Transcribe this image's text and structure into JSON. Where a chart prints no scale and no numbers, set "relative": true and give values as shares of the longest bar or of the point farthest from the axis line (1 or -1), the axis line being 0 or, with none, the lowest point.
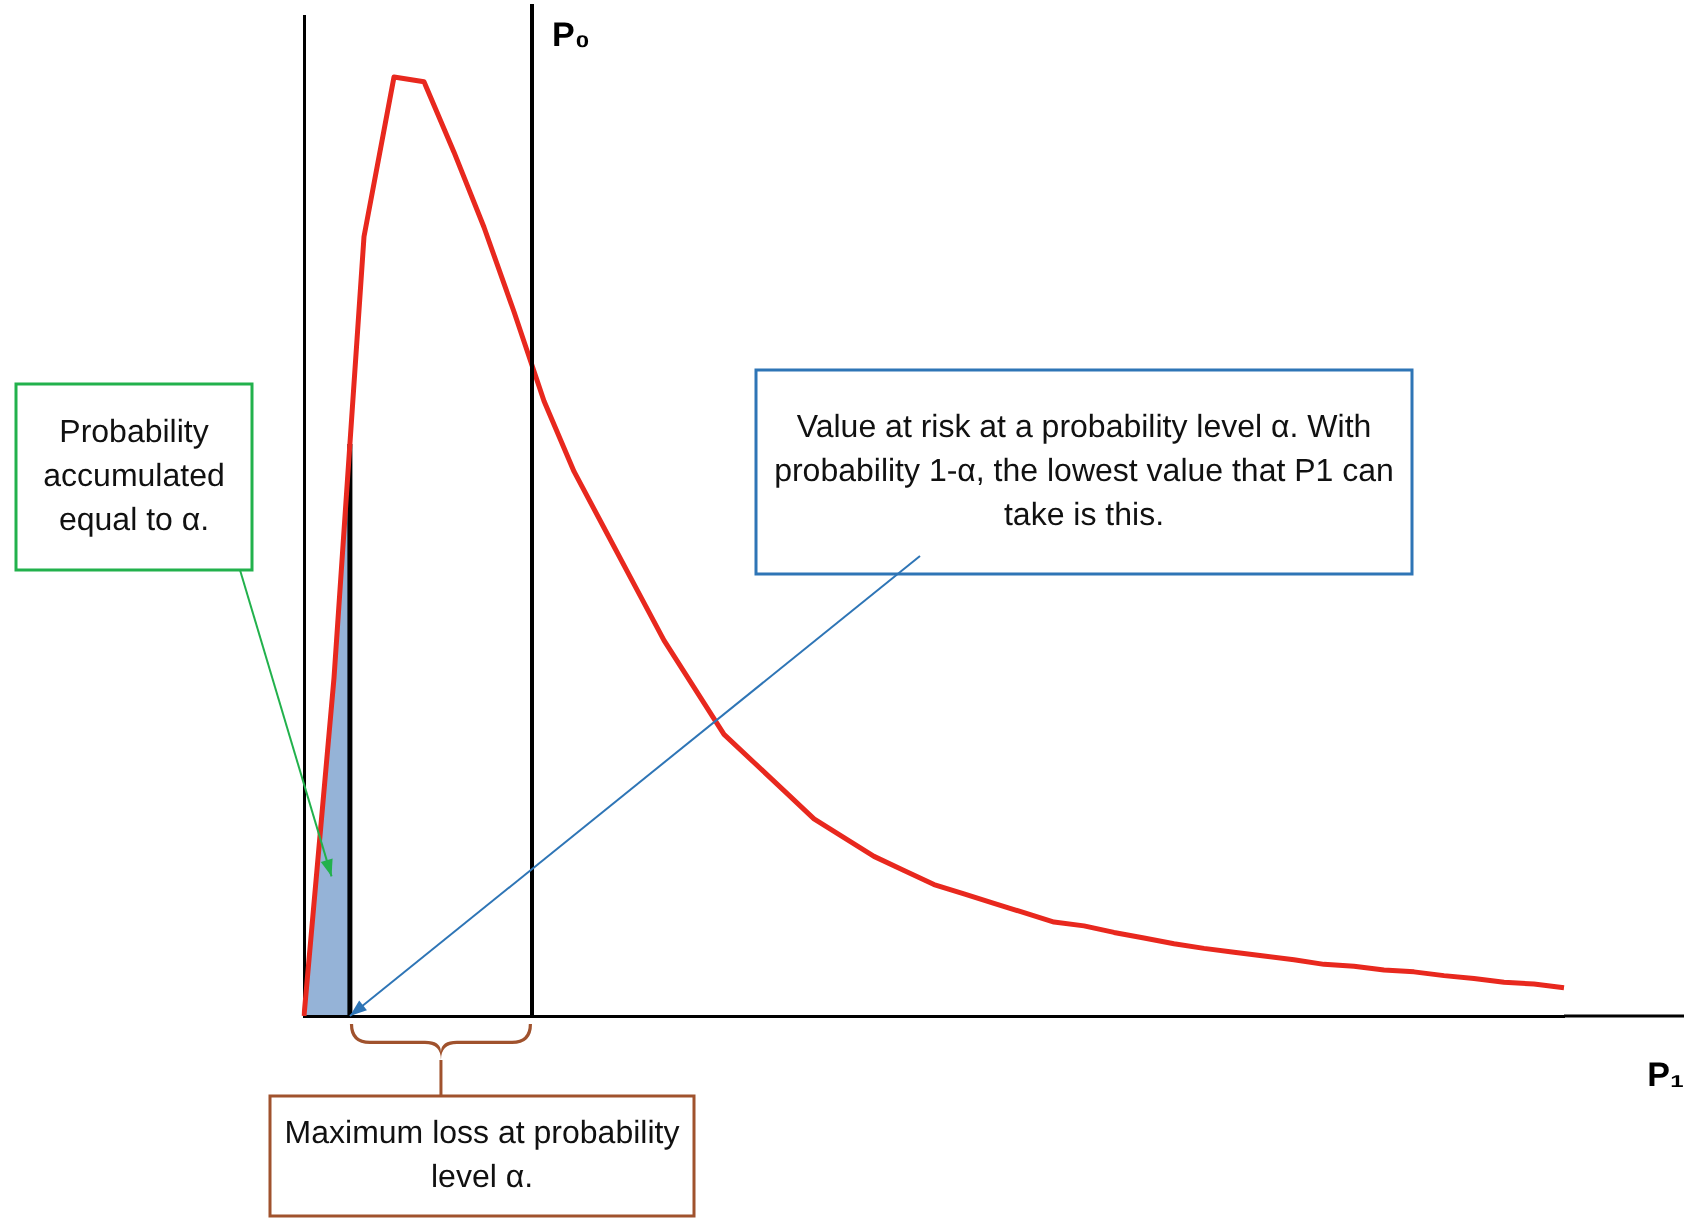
{
  "chart_data": {
    "type": "line",
    "relative": true,
    "xlabel": "P₁",
    "categories": [
      null,
      null,
      null,
      null,
      null,
      null,
      null,
      null,
      null,
      null,
      null,
      null,
      null,
      null,
      null,
      null,
      null,
      null,
      null,
      null,
      null,
      null,
      null,
      null,
      null,
      null,
      null,
      null,
      null,
      null,
      null,
      null,
      null,
      null,
      null,
      null,
      null,
      null,
      null,
      null,
      null,
      null,
      null
    ],
    "grid": false,
    "legend": false,
    "marker": "none",
    "series": [
      {
        "color": "#e8281e",
        "values": [
          0,
          0.36,
          0.83,
          1,
          0.995,
          0.92,
          0.84,
          0.75,
          0.655,
          0.58,
          0.52,
          0.46,
          0.4,
          0.35,
          0.3,
          0.27,
          0.24,
          0.21,
          0.19,
          0.17,
          0.155,
          0.14,
          0.13,
          0.12,
          0.11,
          0.1,
          0.096,
          0.089,
          0.083,
          0.077,
          0.072,
          0.068,
          0.064,
          0.06,
          0.055,
          0.053,
          0.049,
          0.047,
          0.043,
          0.04,
          0.036,
          0.034,
          0.03
        ]
      }
    ],
    "annotations": [
      "Probability accumulated equal to α.",
      "Value at risk at a probability level α. With probability 1-α, the lowest value that P1 can take is this.",
      "Maximum loss at probability level α.",
      "P₀"
    ]
  }
}
